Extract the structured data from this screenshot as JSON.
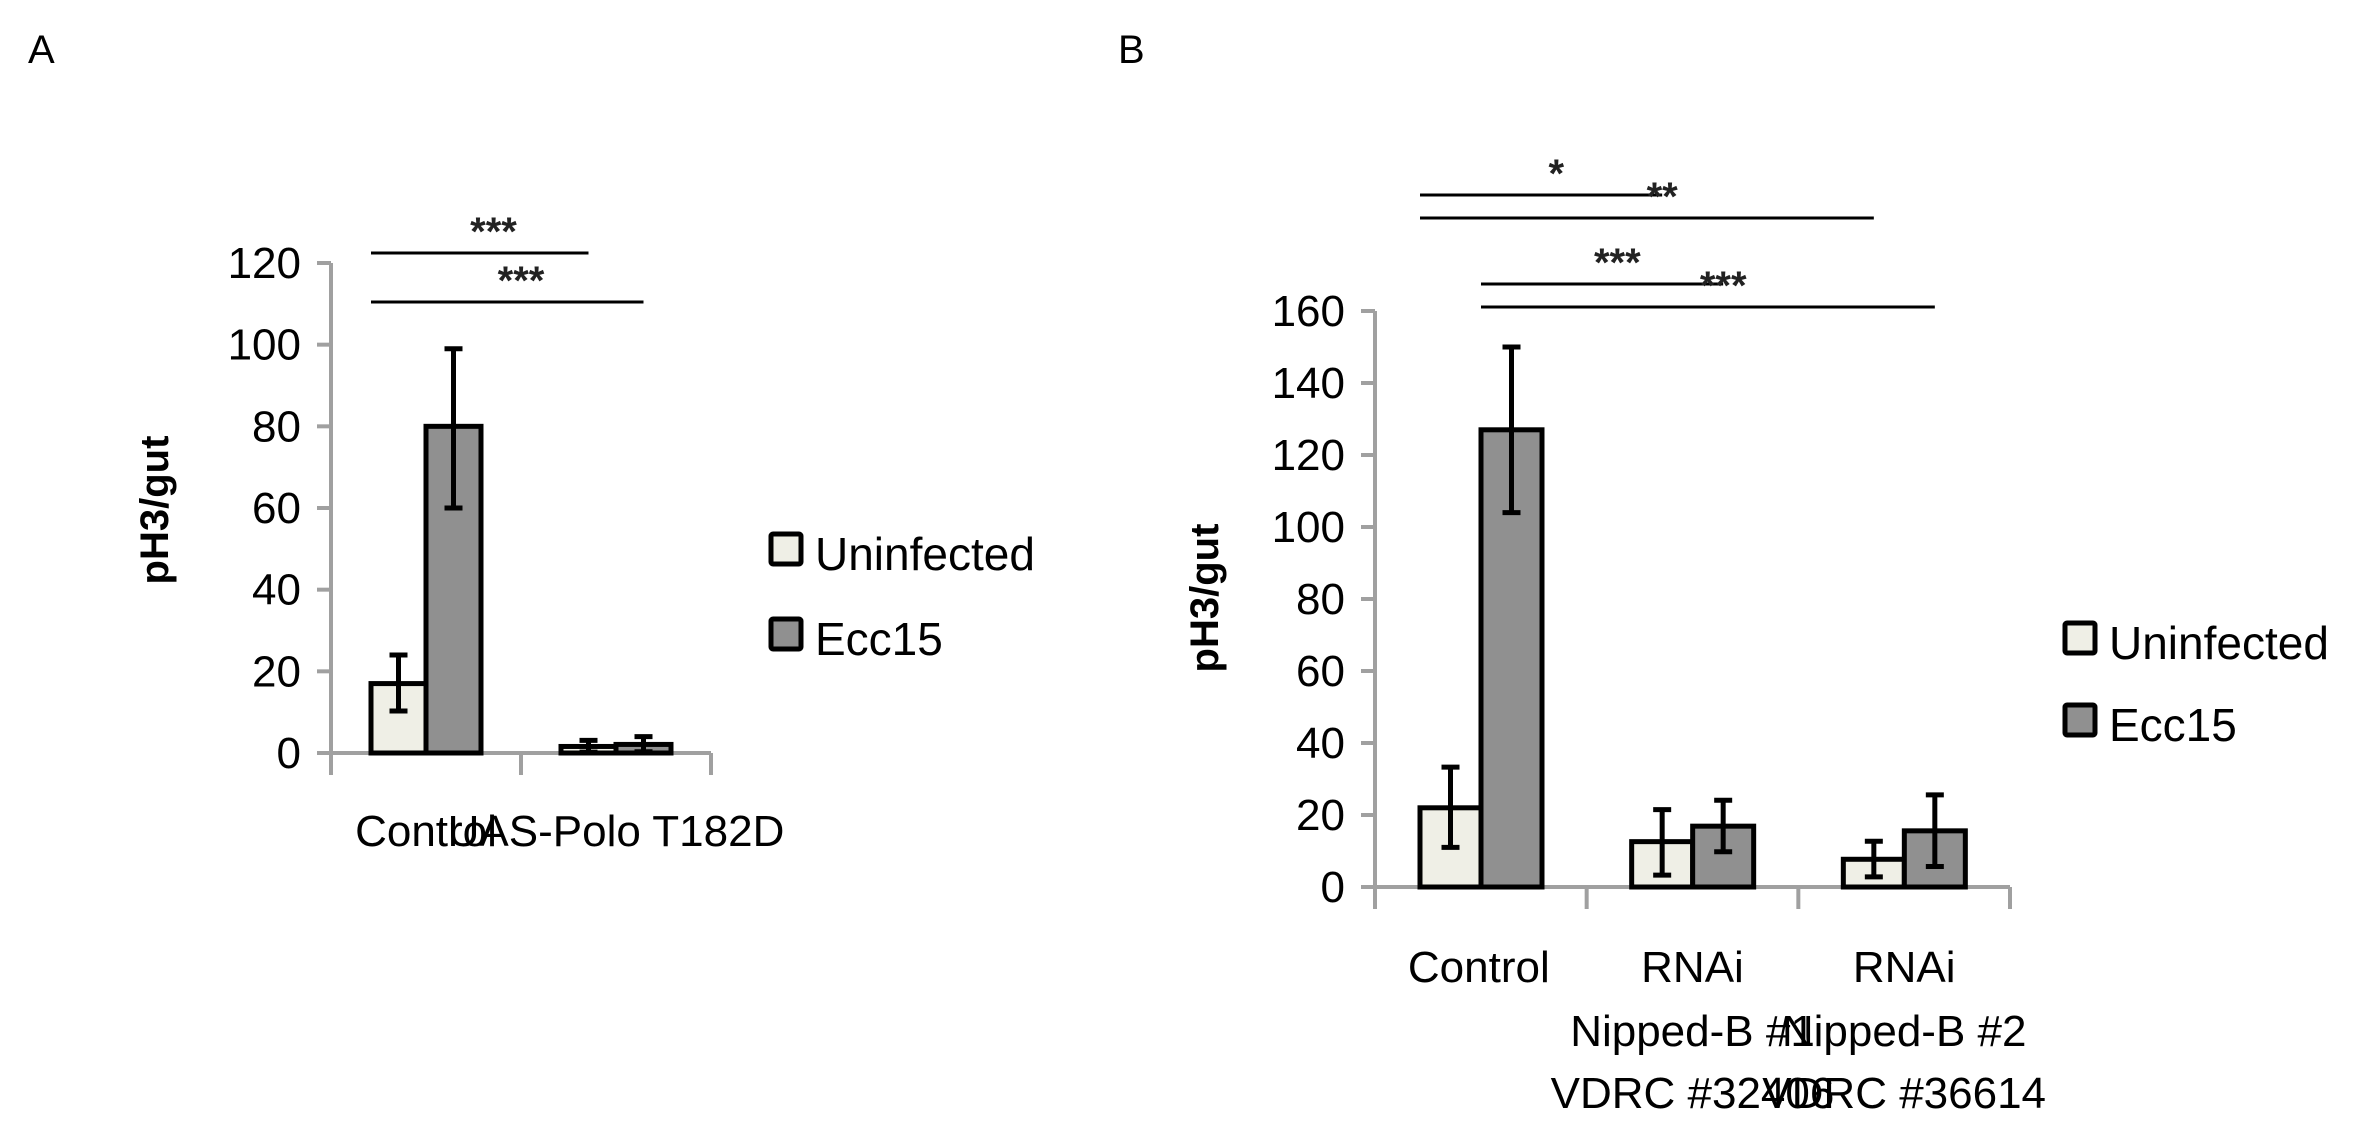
{
  "panels": [
    {
      "letter": "A",
      "y_axis_title": "pH3/gut",
      "legend": [
        {
          "label": "Uninfected",
          "color": "#efefe6"
        },
        {
          "label": "Ecc15",
          "color": "#909090"
        }
      ],
      "significance": [
        {
          "label": "***",
          "from": "Control Uninfected",
          "to": "UAS-Polo T182D Uninfected"
        },
        {
          "label": "***",
          "from": "Control Uninfected",
          "to": "UAS-Polo T182D Ecc15"
        }
      ]
    },
    {
      "letter": "B",
      "y_axis_title": "pH3/gut",
      "legend": [
        {
          "label": "Uninfected",
          "color": "#efefe6"
        },
        {
          "label": "Ecc15",
          "color": "#909090"
        }
      ],
      "significance": [
        {
          "label": "*",
          "from": "Control Uninfected",
          "to": "RNAi Nipped-B #1 Uninfected"
        },
        {
          "label": "**",
          "from": "Control Uninfected",
          "to": "RNAi Nipped-B #2 Uninfected"
        },
        {
          "label": "***",
          "from": "Control Ecc15",
          "to": "RNAi Nipped-B #1 Ecc15"
        },
        {
          "label": "***",
          "from": "Control Ecc15",
          "to": "RNAi Nipped-B #2 Ecc15"
        }
      ]
    }
  ],
  "chart_data": [
    {
      "type": "bar",
      "title": "A",
      "xlabel": "",
      "ylabel": "pH3/gut",
      "ylim": [
        0,
        120
      ],
      "yticks": [
        0,
        20,
        40,
        60,
        80,
        100,
        120
      ],
      "grid": false,
      "legend_position": "right",
      "categories": [
        [
          "Control"
        ],
        [
          "UAS-Polo T182D"
        ]
      ],
      "series": [
        {
          "name": "Uninfected",
          "color": "#efefe6",
          "values": [
            17,
            1.6
          ],
          "error_low": [
            10.3,
            0.2
          ],
          "error_high": [
            24,
            3.1
          ]
        },
        {
          "name": "Ecc15",
          "color": "#909090",
          "values": [
            80,
            2.1
          ],
          "error_low": [
            60,
            0.3
          ],
          "error_high": [
            99,
            4
          ]
        }
      ],
      "annotations": [
        {
          "text": "***",
          "span": [
            "Control:Uninfected",
            "UAS-Polo T182D:Uninfected"
          ],
          "level": 1
        },
        {
          "text": "***",
          "span": [
            "Control:Uninfected",
            "UAS-Polo T182D:Ecc15"
          ],
          "level": 0
        }
      ]
    },
    {
      "type": "bar",
      "title": "B",
      "xlabel": "",
      "ylabel": "pH3/gut",
      "ylim": [
        0,
        160
      ],
      "yticks": [
        0,
        20,
        40,
        60,
        80,
        100,
        120,
        140,
        160
      ],
      "grid": false,
      "legend_position": "right",
      "categories": [
        [
          "Control"
        ],
        [
          "RNAi",
          "Nipped-B #1",
          "VDRC #32406"
        ],
        [
          "RNAi",
          "Nipped-B #2",
          "VDRC #36614"
        ]
      ],
      "series": [
        {
          "name": "Uninfected",
          "color": "#efefe6",
          "values": [
            22,
            12.6,
            7.7
          ],
          "error_low": [
            11,
            3.3,
            2.8
          ],
          "error_high": [
            33.3,
            21.5,
            12.7
          ]
        },
        {
          "name": "Ecc15",
          "color": "#909090",
          "values": [
            127,
            16.9,
            15.6
          ],
          "error_low": [
            104,
            9.8,
            5.7
          ],
          "error_high": [
            150,
            24.1,
            25.6
          ]
        }
      ],
      "annotations": [
        {
          "text": "*",
          "span": [
            "Control:Uninfected",
            "RNAi Nipped-B #1:Uninfected"
          ],
          "level": 3
        },
        {
          "text": "**",
          "span": [
            "Control:Uninfected",
            "RNAi Nipped-B #2:Uninfected"
          ],
          "level": 2
        },
        {
          "text": "***",
          "span": [
            "Control:Ecc15",
            "RNAi Nipped-B #1:Ecc15"
          ],
          "level": 1
        },
        {
          "text": "***",
          "span": [
            "Control:Ecc15",
            "RNAi Nipped-B #2:Ecc15"
          ],
          "level": 0
        }
      ]
    }
  ]
}
